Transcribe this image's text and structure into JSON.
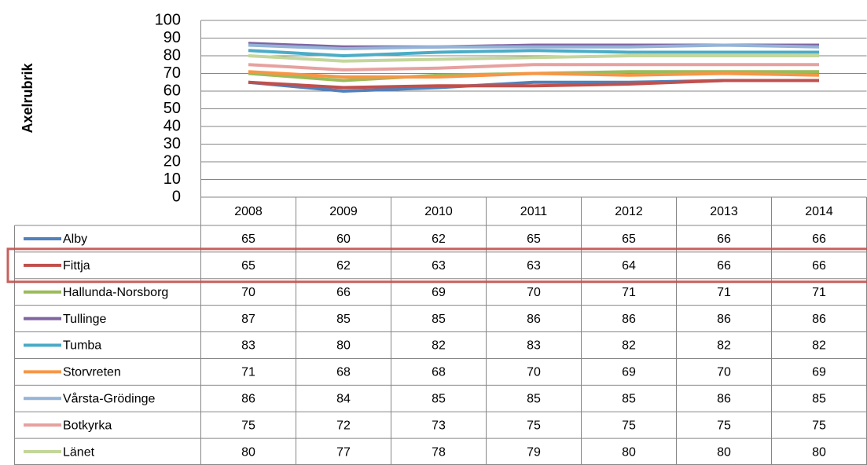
{
  "chart_data": {
    "type": "line",
    "y_label": "Axelrubrik",
    "categories": [
      "2008",
      "2009",
      "2010",
      "2011",
      "2012",
      "2013",
      "2014"
    ],
    "ylim": [
      0,
      100
    ],
    "yticks": [
      0,
      10,
      20,
      30,
      40,
      50,
      60,
      70,
      80,
      90,
      100
    ],
    "grid": true,
    "series": [
      {
        "name": "Alby",
        "color": "#4f81bd",
        "values": [
          65,
          60,
          62,
          65,
          65,
          66,
          66
        ]
      },
      {
        "name": "Fittja",
        "color": "#c0504d",
        "values": [
          65,
          62,
          63,
          63,
          64,
          66,
          66
        ]
      },
      {
        "name": "Hallunda-Norsborg",
        "color": "#9bbb59",
        "values": [
          70,
          66,
          69,
          70,
          71,
          71,
          71
        ]
      },
      {
        "name": "Tullinge",
        "color": "#8064a2",
        "values": [
          87,
          85,
          85,
          86,
          86,
          86,
          86
        ]
      },
      {
        "name": "Tumba",
        "color": "#4bacc6",
        "values": [
          83,
          80,
          82,
          83,
          82,
          82,
          82
        ]
      },
      {
        "name": "Storvreten",
        "color": "#f79646",
        "values": [
          71,
          68,
          68,
          70,
          69,
          70,
          69
        ]
      },
      {
        "name": "Vårsta-Grödinge",
        "color": "#95b3d7",
        "values": [
          86,
          84,
          85,
          85,
          85,
          86,
          85
        ]
      },
      {
        "name": "Botkyrka",
        "color": "#e6a19f",
        "values": [
          75,
          72,
          73,
          75,
          75,
          75,
          75
        ]
      },
      {
        "name": "Länet",
        "color": "#c3d69b",
        "values": [
          80,
          77,
          78,
          79,
          80,
          80,
          80
        ]
      }
    ]
  }
}
